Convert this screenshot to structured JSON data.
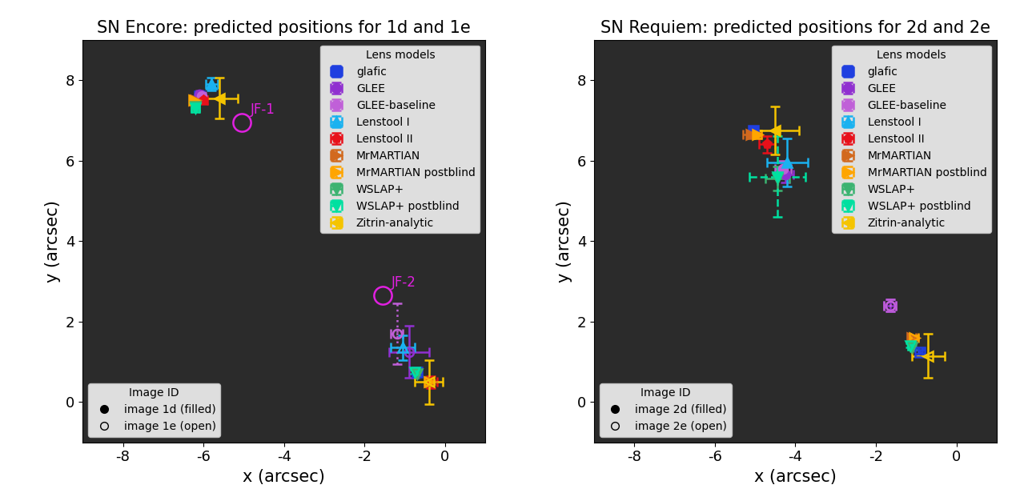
{
  "chart_data": [
    {
      "type": "scatter",
      "title": "SN Encore: predicted positions for 1d and 1e",
      "x_label": "x (arcsec)",
      "y_label": "y (arcsec)",
      "xlim": [
        -9,
        1
      ],
      "ylim": [
        -1,
        9
      ],
      "xticks": [
        -8,
        -6,
        -4,
        -2,
        0
      ],
      "yticks": [
        0,
        2,
        4,
        6,
        8
      ],
      "legend": "upper right",
      "legend_title": "Lens models",
      "image_legend": {
        "title": "Image ID",
        "legend": "lower left",
        "entries": [
          "image 1d (filled)",
          "image 1e (open)"
        ]
      },
      "annotations": [
        {
          "text": "JF-1",
          "x": -5.05,
          "y": 6.95
        },
        {
          "text": "JF-2",
          "x": -1.55,
          "y": 2.65
        }
      ],
      "series": [
        {
          "name": "glafic",
          "color": "#1f3fe0",
          "marker": "square",
          "line_style": "solid",
          "x": [
            -6.1,
            -0.7
          ],
          "y": [
            7.6,
            0.75
          ],
          "xerr": [
            0.05,
            0.05
          ],
          "yerr": [
            0.05,
            0.05
          ]
        },
        {
          "name": "GLEE",
          "color": "#9030d0",
          "marker": "circle",
          "line_style": "solid",
          "x": [
            -6.1,
            -0.9
          ],
          "y": [
            7.65,
            1.25
          ],
          "xerr": [
            0.08,
            0.5
          ],
          "yerr": [
            0.08,
            0.65
          ]
        },
        {
          "name": "GLEE-baseline",
          "color": "#c060d8",
          "marker": "circle",
          "line_style": "dotted",
          "x": [
            -6.05,
            -1.2
          ],
          "y": [
            7.6,
            1.7
          ],
          "xerr": [
            0.08,
            0.15
          ],
          "yerr": [
            0.08,
            0.75
          ]
        },
        {
          "name": "Lenstool I",
          "color": "#1ab2f0",
          "marker": "triangle_up",
          "line_style": "solid",
          "x": [
            -5.8,
            -1.05
          ],
          "y": [
            7.9,
            1.35
          ],
          "xerr": [
            0.15,
            0.3
          ],
          "yerr": [
            0.15,
            0.3
          ]
        },
        {
          "name": "Lenstool II",
          "color": "#e8101a",
          "marker": "pentagon",
          "line_style": "solid",
          "x": [
            -6.0,
            -0.35
          ],
          "y": [
            7.5,
            0.5
          ],
          "xerr": [
            0.1,
            0.15
          ],
          "yerr": [
            0.1,
            0.15
          ]
        },
        {
          "name": "MrMARTIAN",
          "color": "#d2691e",
          "marker": "triangle_right",
          "line_style": "solid",
          "x": [
            -6.2,
            -0.35
          ],
          "y": [
            7.5,
            0.5
          ],
          "xerr": [
            0.05,
            0.05
          ],
          "yerr": [
            0.05,
            0.05
          ]
        },
        {
          "name": "MrMARTIAN postblind",
          "color": "#ffa500",
          "marker": "triangle_right",
          "line_style": "dotted",
          "x": [
            -6.25,
            -0.4
          ],
          "y": [
            7.5,
            0.5
          ],
          "xerr": [
            0.05,
            0.05
          ],
          "yerr": [
            0.05,
            0.05
          ]
        },
        {
          "name": "WSLAP+",
          "color": "#3cb371",
          "marker": "triangle_down",
          "line_style": "solid",
          "x": [
            -6.2,
            -0.7
          ],
          "y": [
            7.35,
            0.7
          ],
          "xerr": [
            0.1,
            0.05
          ],
          "yerr": [
            0.1,
            0.05
          ]
        },
        {
          "name": "WSLAP+ postblind",
          "color": "#00e0a0",
          "marker": "triangle_down",
          "line_style": "dashed",
          "x": [
            -6.2,
            -0.75
          ],
          "y": [
            7.3,
            0.75
          ],
          "xerr": [
            0.1,
            0.05
          ],
          "yerr": [
            0.1,
            0.05
          ]
        },
        {
          "name": "Zitrin-analytic",
          "color": "#f5c400",
          "marker": "triangle_left",
          "line_style": "solid",
          "x": [
            -5.6,
            -0.4
          ],
          "y": [
            7.55,
            0.5
          ],
          "xerr": [
            0.45,
            0.35
          ],
          "yerr": [
            0.5,
            0.55
          ]
        }
      ]
    },
    {
      "type": "scatter",
      "title": "SN Requiem: predicted positions for 2d and 2e",
      "x_label": "x (arcsec)",
      "y_label": "y (arcsec)",
      "xlim": [
        -9,
        1
      ],
      "ylim": [
        -1,
        9
      ],
      "xticks": [
        -8,
        -6,
        -4,
        -2,
        0
      ],
      "yticks": [
        0,
        2,
        4,
        6,
        8
      ],
      "legend": "upper right",
      "legend_title": "Lens models",
      "image_legend": {
        "title": "Image ID",
        "legend": "lower left",
        "entries": [
          "image 2d (filled)",
          "image 2e (open)"
        ]
      },
      "annotations": [],
      "series": [
        {
          "name": "glafic",
          "color": "#1f3fe0",
          "marker": "square",
          "line_style": "solid",
          "x": [
            -5.05,
            -0.9
          ],
          "y": [
            6.75,
            1.25
          ],
          "xerr": [
            0.05,
            0.05
          ],
          "yerr": [
            0.05,
            0.05
          ]
        },
        {
          "name": "GLEE",
          "color": "#9030d0",
          "marker": "circle",
          "line_style": "solid",
          "x": [
            -4.25,
            -1.65
          ],
          "y": [
            5.65,
            2.4
          ],
          "xerr": [
            0.2,
            0.15
          ],
          "yerr": [
            0.2,
            0.15
          ]
        },
        {
          "name": "GLEE-baseline",
          "color": "#c060d8",
          "marker": "circle",
          "line_style": "dotted",
          "x": [
            -4.3,
            -1.65
          ],
          "y": [
            5.8,
            2.4
          ],
          "xerr": [
            0.2,
            0.15
          ],
          "yerr": [
            0.2,
            0.15
          ]
        },
        {
          "name": "Lenstool I",
          "color": "#1ab2f0",
          "marker": "triangle_up",
          "line_style": "solid",
          "x": [
            -4.2,
            null
          ],
          "y": [
            5.95,
            null
          ],
          "xerr": [
            0.5,
            null
          ],
          "yerr": [
            0.6,
            null
          ]
        },
        {
          "name": "Lenstool II",
          "color": "#e8101a",
          "marker": "pentagon",
          "line_style": "solid",
          "x": [
            -4.7,
            null
          ],
          "y": [
            6.4,
            null
          ],
          "xerr": [
            0.2,
            null
          ],
          "yerr": [
            0.2,
            null
          ]
        },
        {
          "name": "MrMARTIAN",
          "color": "#d2691e",
          "marker": "triangle_right",
          "line_style": "solid",
          "x": [
            -5.1,
            -1.1
          ],
          "y": [
            6.65,
            1.6
          ],
          "xerr": [
            0.2,
            0.1
          ],
          "yerr": [
            0.1,
            0.05
          ]
        },
        {
          "name": "MrMARTIAN postblind",
          "color": "#ffa500",
          "marker": "triangle_right",
          "line_style": "dotted",
          "x": [
            -4.95,
            -1.05
          ],
          "y": [
            6.65,
            1.6
          ],
          "xerr": [
            0.1,
            0.1
          ],
          "yerr": [
            0.1,
            0.05
          ]
        },
        {
          "name": "WSLAP+",
          "color": "#3cb371",
          "marker": "triangle_down",
          "line_style": "solid",
          "x": [
            -4.45,
            -1.1
          ],
          "y": [
            5.55,
            1.35
          ],
          "xerr": [
            0.3,
            0.05
          ],
          "yerr": [
            0.3,
            0.05
          ]
        },
        {
          "name": "WSLAP+ postblind",
          "color": "#00e0a0",
          "marker": "triangle_down",
          "line_style": "dashed",
          "x": [
            -4.45,
            -1.15
          ],
          "y": [
            5.6,
            1.4
          ],
          "xerr": [
            0.7,
            0.05
          ],
          "yerr": [
            1.0,
            0.05
          ]
        },
        {
          "name": "Zitrin-analytic",
          "color": "#f5c400",
          "marker": "triangle_left",
          "line_style": "solid",
          "x": [
            -4.5,
            -0.7
          ],
          "y": [
            6.75,
            1.15
          ],
          "xerr": [
            0.6,
            0.4
          ],
          "yerr": [
            0.6,
            0.55
          ]
        }
      ]
    }
  ]
}
